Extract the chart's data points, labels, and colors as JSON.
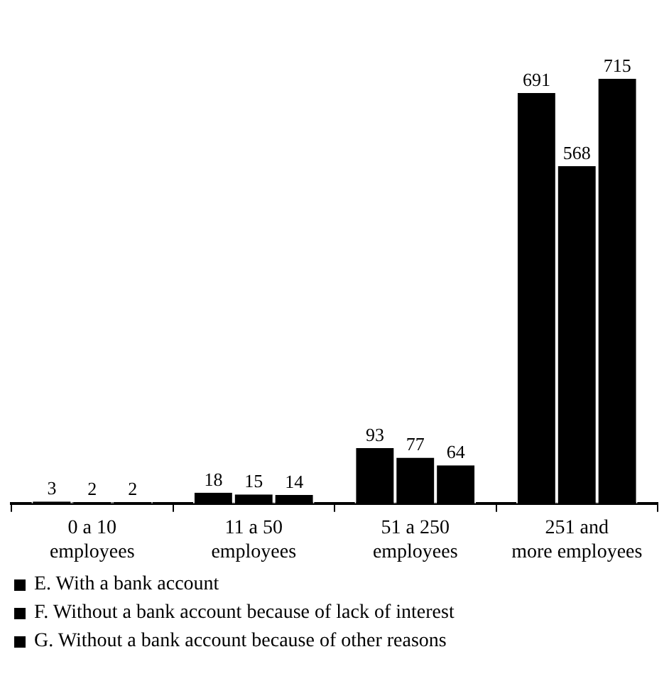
{
  "chart_data": {
    "type": "bar",
    "categories": [
      "0 a 10\nemployees",
      "11 a 50\nemployees",
      "51 a 250\nemployees",
      "251 and\nmore employees"
    ],
    "series": [
      {
        "name": "E. With a bank account",
        "color": "#000000",
        "values": [
          3,
          18,
          93,
          691
        ]
      },
      {
        "name": "F. Without a bank account because of lack of interest",
        "color": "#000000",
        "values": [
          2,
          15,
          77,
          568
        ]
      },
      {
        "name": "G. Without a bank account because of other reasons",
        "color": "#000000",
        "values": [
          2,
          14,
          64,
          715
        ]
      }
    ],
    "data_labels": true,
    "legend": "bottom",
    "grid": false
  }
}
